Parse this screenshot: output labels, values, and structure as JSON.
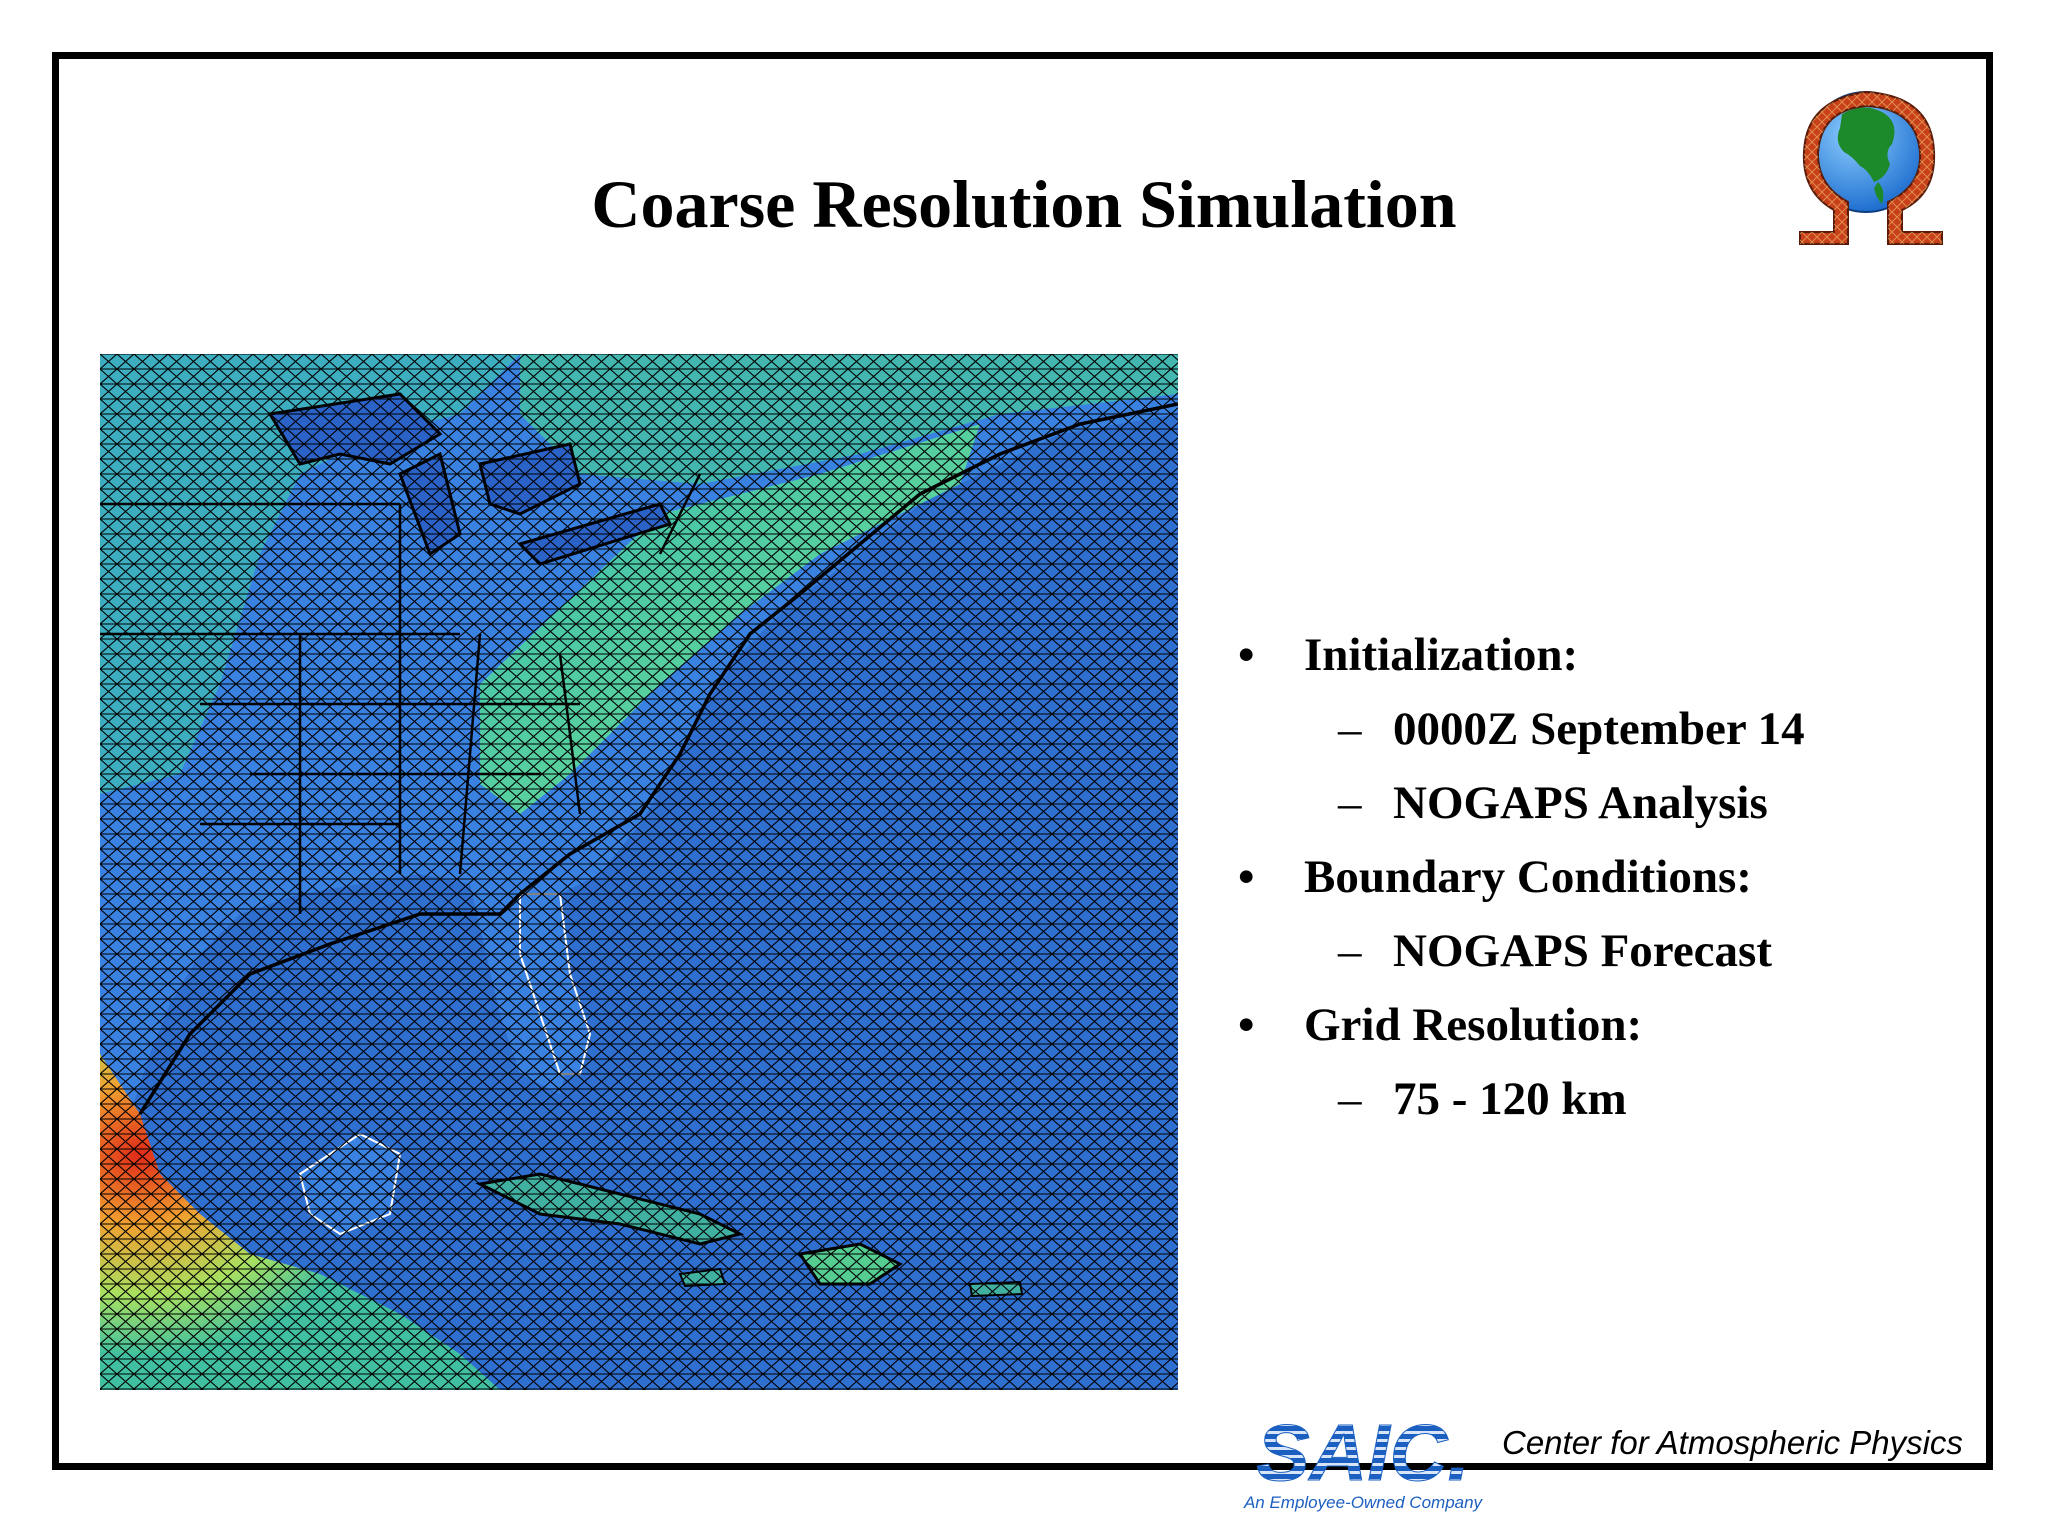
{
  "slide": {
    "title": "Coarse Resolution Simulation",
    "bullets": [
      {
        "level": 1,
        "marker": "•",
        "text": "Initialization:"
      },
      {
        "level": 2,
        "marker": "–",
        "text": "0000Z September 14"
      },
      {
        "level": 2,
        "marker": "–",
        "text": "NOGAPS Analysis"
      },
      {
        "level": 1,
        "marker": "•",
        "text": "Boundary Conditions:"
      },
      {
        "level": 2,
        "marker": "–",
        "text": "NOGAPS Forecast"
      },
      {
        "level": 1,
        "marker": "•",
        "text": "Grid Resolution:"
      },
      {
        "level": 2,
        "marker": "–",
        "text": "75 - 120 km"
      }
    ]
  },
  "map": {
    "region": "Eastern North America, Gulf of Mexico and Caribbean",
    "mesh": "triangular grid",
    "colors": {
      "ocean": "#2f6fd0",
      "land_low": "#3a7fe0",
      "land_mid": "#31c0a8",
      "land_high": "#6fe08a",
      "peak": "#e03a20",
      "mesh_line": "#000000",
      "coast_outline": "#ffffff"
    }
  },
  "logos": {
    "omega": {
      "icon": "omega-globe-icon"
    },
    "saic": {
      "text": "SAIC.",
      "tagline": "An Employee-Owned Company",
      "color": "#1b5fc0"
    }
  },
  "footer": {
    "text": "Center for Atmospheric Physics"
  }
}
